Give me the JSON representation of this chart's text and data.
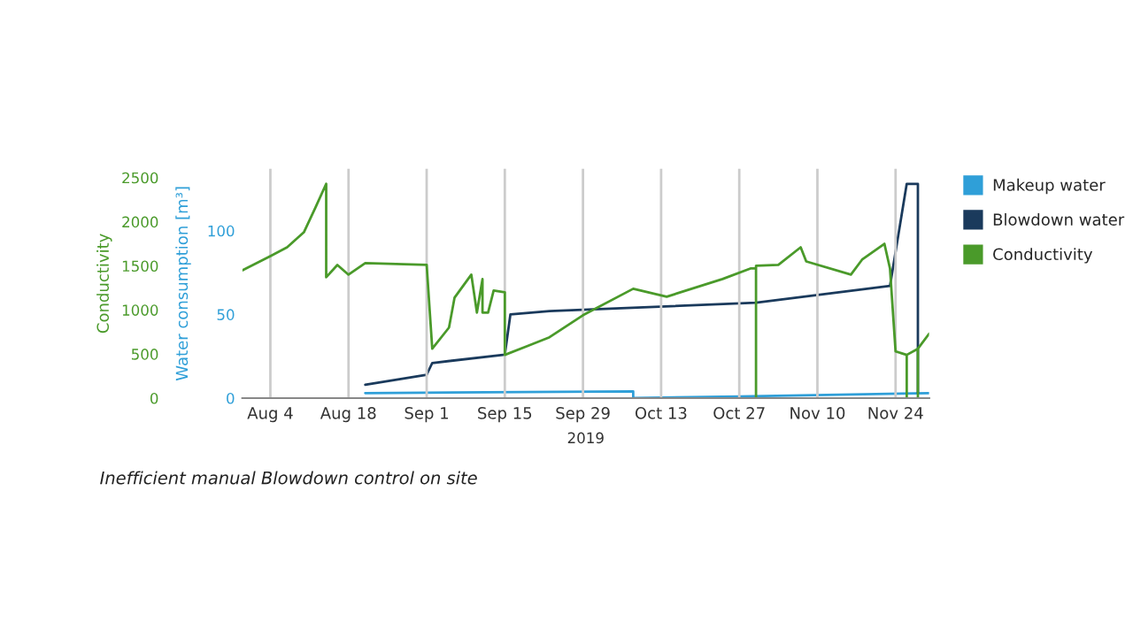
{
  "chart_data": {
    "type": "line",
    "xlabel": "2019",
    "ylabel": "Conductivity",
    "y2label": "Water consumption [m³]",
    "annotations": [
      "Inefficient manual Blowdown control on site"
    ],
    "xlim": [
      "2019-07-30",
      "2019-11-30"
    ],
    "xticks": [
      {
        "value": "2019-08-04",
        "label": "Aug 4"
      },
      {
        "value": "2019-08-18",
        "label": "Aug 18"
      },
      {
        "value": "2019-09-01",
        "label": "Sep 1"
      },
      {
        "value": "2019-09-15",
        "label": "Sep 15"
      },
      {
        "value": "2019-09-29",
        "label": "Sep 29"
      },
      {
        "value": "2019-10-13",
        "label": "Oct 13"
      },
      {
        "value": "2019-10-27",
        "label": "Oct 27"
      },
      {
        "value": "2019-11-10",
        "label": "Nov 10"
      },
      {
        "value": "2019-11-24",
        "label": "Nov 24"
      }
    ],
    "ylim": [
      0,
      2600
    ],
    "yticks": [
      0,
      500,
      1000,
      1500,
      2000,
      2500
    ],
    "y2lim": [
      0,
      137
    ],
    "y2ticks": [
      0,
      50,
      100
    ],
    "grid": "x",
    "legend": "top right",
    "series": [
      {
        "name": "Makeup water",
        "color": "#2f9fd8",
        "axis": "y2",
        "x": [
          "2019-08-21",
          "2019-10-08",
          "2019-10-08",
          "2019-10-27",
          "2019-11-30"
        ],
        "values": [
          3,
          4,
          0,
          1,
          3
        ]
      },
      {
        "name": "Blowdown water",
        "color": "#1a3a5c",
        "axis": "y2",
        "x": [
          "2019-08-21",
          "2019-09-01",
          "2019-09-02",
          "2019-09-15",
          "2019-09-16",
          "2019-09-23",
          "2019-10-30",
          "2019-11-23",
          "2019-11-26",
          "2019-11-28",
          "2019-11-28"
        ],
        "values": [
          8,
          14,
          21,
          26,
          50,
          52,
          57,
          67,
          128,
          128,
          3
        ]
      },
      {
        "name": "Conductivity",
        "color": "#4a9a2a",
        "axis": "y",
        "x": [
          "2019-07-30",
          "2019-08-04",
          "2019-08-07",
          "2019-08-10",
          "2019-08-12",
          "2019-08-14",
          "2019-08-14",
          "2019-08-16",
          "2019-08-18",
          "2019-08-21",
          "2019-09-01",
          "2019-09-02",
          "2019-09-05",
          "2019-09-06",
          "2019-09-09",
          "2019-09-10",
          "2019-09-11",
          "2019-09-11",
          "2019-09-12",
          "2019-09-13",
          "2019-09-15",
          "2019-09-15",
          "2019-09-19",
          "2019-09-23",
          "2019-09-29",
          "2019-10-08",
          "2019-10-14",
          "2019-10-24",
          "2019-10-29",
          "2019-10-30",
          "2019-10-30",
          "2019-10-30",
          "2019-11-03",
          "2019-11-07",
          "2019-11-08",
          "2019-11-16",
          "2019-11-18",
          "2019-11-22",
          "2019-11-23",
          "2019-11-24",
          "2019-11-26",
          "2019-11-26",
          "2019-11-26",
          "2019-11-28",
          "2019-11-28",
          "2019-11-28",
          "2019-11-30"
        ],
        "values": [
          1450,
          1610,
          1710,
          1880,
          2150,
          2430,
          1370,
          1510,
          1400,
          1530,
          1510,
          560,
          800,
          1140,
          1400,
          970,
          1350,
          970,
          970,
          1220,
          1200,
          490,
          590,
          690,
          940,
          1240,
          1150,
          1350,
          1470,
          1470,
          0,
          1500,
          1510,
          1710,
          1550,
          1400,
          1570,
          1750,
          1470,
          530,
          490,
          0,
          490,
          560,
          0,
          560,
          730
        ]
      }
    ]
  }
}
